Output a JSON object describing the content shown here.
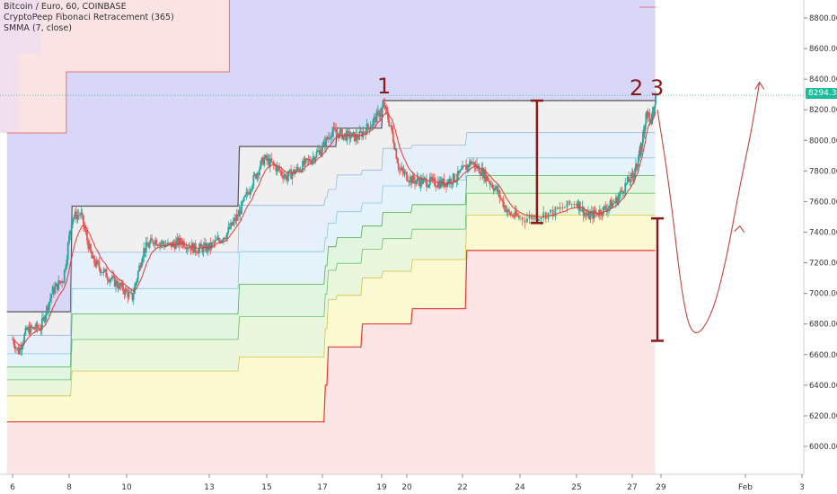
{
  "legend": {
    "line1": "Bitcoin / Euro, 60, COINBASE",
    "line2": "CryptoPeep Fibonaci Retracement (365)",
    "line3": "SMMA (7, close)"
  },
  "annotations": {
    "label1": "1",
    "label2": "2",
    "label3": "3"
  },
  "last_price": "8294.31",
  "colors": {
    "up": "#26a69a",
    "down": "#ef5350",
    "smma": "#e53935",
    "annotation": "#8b1a1a",
    "price_line": "#1bbc9b"
  },
  "chart_data": {
    "type": "candlestick",
    "title": "Bitcoin / Euro, 60, COINBASE",
    "xlabel": "",
    "ylabel": "",
    "ylim": [
      5800,
      8950
    ],
    "y_ticks": [
      6000,
      6200,
      6400,
      6600,
      6800,
      7000,
      7200,
      7400,
      7600,
      7800,
      8000,
      8200,
      8400,
      8600,
      8800
    ],
    "y_tick_labels": [
      "6000.00",
      "6200.00",
      "6400.00",
      "6600.00",
      "6800.00",
      "7000.00",
      "7200.00",
      "7400.00",
      "7600.00",
      "7800.00",
      "8000.00",
      "8200.00",
      "8400.00",
      "8600.00",
      "8800.00"
    ],
    "x_ticks": [
      "6",
      "8",
      "10",
      "13",
      "15",
      "17",
      "19",
      "20",
      "22",
      "24",
      "25",
      "27",
      "29",
      "Feb",
      "3"
    ],
    "close_path": [
      {
        "day": 6.0,
        "price": 6700
      },
      {
        "day": 6.2,
        "price": 6620
      },
      {
        "day": 6.5,
        "price": 6760
      },
      {
        "day": 7.0,
        "price": 6780
      },
      {
        "day": 7.4,
        "price": 7010
      },
      {
        "day": 7.8,
        "price": 7100
      },
      {
        "day": 8.1,
        "price": 7500
      },
      {
        "day": 8.4,
        "price": 7520
      },
      {
        "day": 8.8,
        "price": 7220
      },
      {
        "day": 9.3,
        "price": 7120
      },
      {
        "day": 9.8,
        "price": 7040
      },
      {
        "day": 10.2,
        "price": 6970
      },
      {
        "day": 10.6,
        "price": 7280
      },
      {
        "day": 11.0,
        "price": 7350
      },
      {
        "day": 11.5,
        "price": 7310
      },
      {
        "day": 12.0,
        "price": 7340
      },
      {
        "day": 12.5,
        "price": 7290
      },
      {
        "day": 13.0,
        "price": 7300
      },
      {
        "day": 13.6,
        "price": 7390
      },
      {
        "day": 14.0,
        "price": 7510
      },
      {
        "day": 14.5,
        "price": 7730
      },
      {
        "day": 14.9,
        "price": 7880
      },
      {
        "day": 15.3,
        "price": 7830
      },
      {
        "day": 15.7,
        "price": 7760
      },
      {
        "day": 16.2,
        "price": 7820
      },
      {
        "day": 16.6,
        "price": 7880
      },
      {
        "day": 17.0,
        "price": 7950
      },
      {
        "day": 17.3,
        "price": 8060
      },
      {
        "day": 17.8,
        "price": 8030
      },
      {
        "day": 18.2,
        "price": 8020
      },
      {
        "day": 18.7,
        "price": 8120
      },
      {
        "day": 19.1,
        "price": 8230
      },
      {
        "day": 19.4,
        "price": 8060
      },
      {
        "day": 19.7,
        "price": 7810
      },
      {
        "day": 20.2,
        "price": 7740
      },
      {
        "day": 20.7,
        "price": 7730
      },
      {
        "day": 21.3,
        "price": 7720
      },
      {
        "day": 21.8,
        "price": 7760
      },
      {
        "day": 22.3,
        "price": 7860
      },
      {
        "day": 22.7,
        "price": 7790
      },
      {
        "day": 23.2,
        "price": 7670
      },
      {
        "day": 23.6,
        "price": 7520
      },
      {
        "day": 24.1,
        "price": 7490
      },
      {
        "day": 24.6,
        "price": 7530
      },
      {
        "day": 25.0,
        "price": 7600
      },
      {
        "day": 25.4,
        "price": 7500
      },
      {
        "day": 25.9,
        "price": 7540
      },
      {
        "day": 26.4,
        "price": 7600
      },
      {
        "day": 26.8,
        "price": 7720
      },
      {
        "day": 27.2,
        "price": 7800
      },
      {
        "day": 27.6,
        "price": 7940
      },
      {
        "day": 28.0,
        "price": 8180
      },
      {
        "day": 28.3,
        "price": 8120
      },
      {
        "day": 28.65,
        "price": 8294
      }
    ],
    "series": [
      {
        "name": "SMMA (7, close)",
        "type": "line"
      },
      {
        "name": "CryptoPeep Fibonaci Retracement (365)",
        "type": "bands"
      }
    ],
    "fib_high": [
      {
        "day": 5.8,
        "value": 6880
      },
      {
        "day": 8.05,
        "value": 6880
      },
      {
        "day": 8.05,
        "value": 7570
      },
      {
        "day": 14.05,
        "value": 7570
      },
      {
        "day": 14.05,
        "value": 7960
      },
      {
        "day": 17.5,
        "value": 7960
      },
      {
        "day": 17.5,
        "value": 8080
      },
      {
        "day": 19.05,
        "value": 8080
      },
      {
        "day": 19.05,
        "value": 8260
      },
      {
        "day": 28.65,
        "value": 8260
      }
    ],
    "fib_low": [
      {
        "day": 5.8,
        "value": 6160
      },
      {
        "day": 17.1,
        "value": 6160
      },
      {
        "day": 17.1,
        "value": 6400
      },
      {
        "day": 17.2,
        "value": 6650
      },
      {
        "day": 18.2,
        "value": 6650
      },
      {
        "day": 18.35,
        "value": 6800
      },
      {
        "day": 20.1,
        "value": 6800
      },
      {
        "day": 20.2,
        "value": 6900
      },
      {
        "day": 22.05,
        "value": 6900
      },
      {
        "day": 22.15,
        "value": 7280
      },
      {
        "day": 28.65,
        "value": 7280
      }
    ],
    "measure_lines": [
      {
        "day": 24.3,
        "from": 7460,
        "to": 8260
      },
      {
        "day": 28.75,
        "from": 6690,
        "to": 7490
      }
    ],
    "projection_path": [
      {
        "day": 28.75,
        "price": 8200
      },
      {
        "day": 29.3,
        "price": 7700
      },
      {
        "day": 29.8,
        "price": 6900
      },
      {
        "day": 30.2,
        "price": 6700
      },
      {
        "day": 30.8,
        "price": 6850
      },
      {
        "day": 31.3,
        "price": 7200
      },
      {
        "day": 31.8,
        "price": 7700
      },
      {
        "day": 32.2,
        "price": 8050
      },
      {
        "day": 32.5,
        "price": 8380
      }
    ]
  }
}
